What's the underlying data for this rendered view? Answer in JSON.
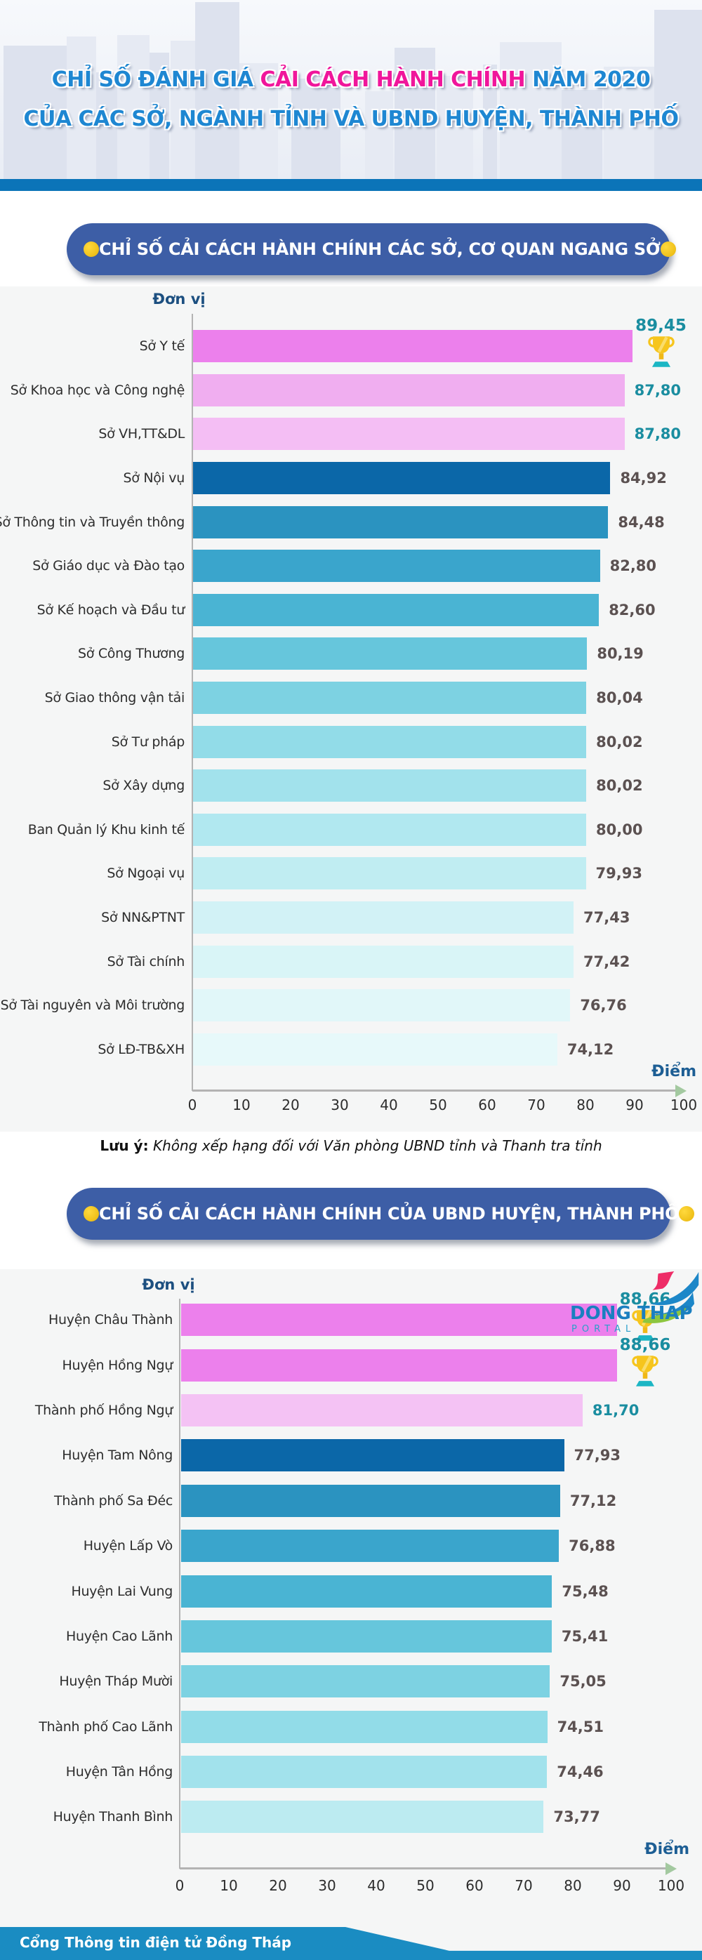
{
  "header": {
    "title_line1_part1": "CHỈ SỐ ĐÁNH GIÁ ",
    "title_line1_part2": "CẢI CÁCH HÀNH CHÍNH",
    "title_line1_part3": " NĂM 2020",
    "title_line2": "CỦA CÁC SỞ, NGÀNH TỈNH VÀ UBND HUYỆN, THÀNH PHỐ",
    "colors": {
      "blue": "#1e87d2",
      "pink": "#f0169b"
    }
  },
  "section1": {
    "title": "CHỈ SỐ CẢI CÁCH HÀNH CHÍNH CÁC SỞ, CƠ QUAN NGANG SỞ"
  },
  "section2": {
    "title": "CHỈ SỐ CẢI CÁCH HÀNH CHÍNH CỦA UBND HUYỆN, THÀNH PHỐ"
  },
  "note": {
    "label": "Lưu ý:",
    "text": " Không xếp hạng đối với Văn phòng UBND tỉnh và Thanh tra tỉnh"
  },
  "footer": {
    "banner_text": "Cổng Thông tin điện tử Đồng Tháp",
    "logo_title": "DONG THAP",
    "logo_subtitle": "PORTAL"
  },
  "chart_data": [
    {
      "type": "bar",
      "orientation": "horizontal",
      "title": "CHỈ SỐ CẢI CÁCH HÀNH CHÍNH CÁC SỞ, CƠ QUAN NGANG SỞ",
      "unit_label": "Đơn vị",
      "axis_label": "Điểm",
      "xlim": [
        0,
        100
      ],
      "ticks": [
        0,
        10,
        20,
        30,
        40,
        50,
        60,
        70,
        80,
        90,
        100
      ],
      "categories": [
        "Sở Y tế",
        "Sở Khoa học và Công nghệ",
        "Sở VH,TT&DL",
        "Sở Nội vụ",
        "Sở Thông tin và Truyền thông",
        "Sở Giáo dục và Đào tạo",
        "Sở Kế hoạch và Đầu tư",
        "Sở Công Thương",
        "Sở Giao thông vận tải",
        "Sở Tư pháp",
        "Sở Xây dựng",
        "Ban Quản lý Khu kinh tế",
        "Sở Ngoại vụ",
        "Sở NN&PTNT",
        "Sở Tài chính",
        "Sở Tài nguyên và Môi trường",
        "Sở LĐ-TB&XH"
      ],
      "values": [
        89.45,
        87.8,
        87.8,
        84.92,
        84.48,
        82.8,
        82.6,
        80.19,
        80.04,
        80.02,
        80.02,
        80.0,
        79.93,
        77.43,
        77.42,
        76.76,
        74.12
      ],
      "value_labels": [
        "89,45",
        "87,80",
        "87,80",
        "84,92",
        "84,48",
        "82,80",
        "82,60",
        "80,19",
        "80,04",
        "80,02",
        "80,02",
        "80,00",
        "79,93",
        "77,43",
        "77,42",
        "76,76",
        "74,12"
      ],
      "bar_colors": [
        "#ec80ec",
        "#f0aef0",
        "#f4bef4",
        "#0b67a8",
        "#2b93c0",
        "#3aa5cc",
        "#4ab4d3",
        "#66c6dc",
        "#7dd2e2",
        "#92dce8",
        "#a2e2ec",
        "#b1e8f0",
        "#c0edf2",
        "#d2f2f6",
        "#d9f5f7",
        "#e1f7f9",
        "#e7f9fa"
      ],
      "value_label_colors": [
        "#1a8da0",
        "#1a8da0",
        "#1a8da0",
        "#5b5151",
        "#5b5151",
        "#5b5151",
        "#5b5151",
        "#5b5151",
        "#5b5151",
        "#5b5151",
        "#5b5151",
        "#5b5151",
        "#5b5151",
        "#5b5151",
        "#5b5151",
        "#5b5151",
        "#5b5151"
      ],
      "trophy_rows": [
        0
      ]
    },
    {
      "type": "bar",
      "orientation": "horizontal",
      "title": "CHỈ SỐ CẢI CÁCH HÀNH CHÍNH CỦA UBND HUYỆN, THÀNH PHỐ",
      "unit_label": "Đơn vị",
      "axis_label": "Điểm",
      "xlim": [
        0,
        100
      ],
      "ticks": [
        0,
        10,
        20,
        30,
        40,
        50,
        60,
        70,
        80,
        90,
        100
      ],
      "categories": [
        "Huyện Châu Thành",
        "Huyện Hồng Ngự",
        "Thành phố Hồng Ngự",
        "Huyện Tam Nông",
        "Thành phố Sa Đéc",
        "Huyện Lấp Vò",
        "Huyện Lai Vung",
        "Huyện Cao Lãnh",
        "Huyện Tháp Mười",
        "Thành phố Cao Lãnh",
        "Huyện Tân Hồng",
        "Huyện Thanh Bình"
      ],
      "values": [
        88.66,
        88.66,
        81.7,
        77.93,
        77.12,
        76.88,
        75.48,
        75.41,
        75.05,
        74.51,
        74.46,
        73.77
      ],
      "value_labels": [
        "88,66",
        "88,66",
        "81,70",
        "77,93",
        "77,12",
        "76,88",
        "75,48",
        "75,41",
        "75,05",
        "74,51",
        "74,46",
        "73,77"
      ],
      "bar_colors": [
        "#ec80ec",
        "#ec80ec",
        "#f4c2f4",
        "#0b67a8",
        "#2b93c0",
        "#3aa5cc",
        "#4ab4d3",
        "#66c6dc",
        "#7dd2e2",
        "#92dce8",
        "#a2e2ec",
        "#bcebf1"
      ],
      "value_label_colors": [
        "#1a8da0",
        "#1a8da0",
        "#1a8da0",
        "#5b5151",
        "#5b5151",
        "#5b5151",
        "#5b5151",
        "#5b5151",
        "#5b5151",
        "#5b5151",
        "#5b5151",
        "#5b5151"
      ],
      "trophy_rows": [
        0,
        1
      ]
    }
  ]
}
